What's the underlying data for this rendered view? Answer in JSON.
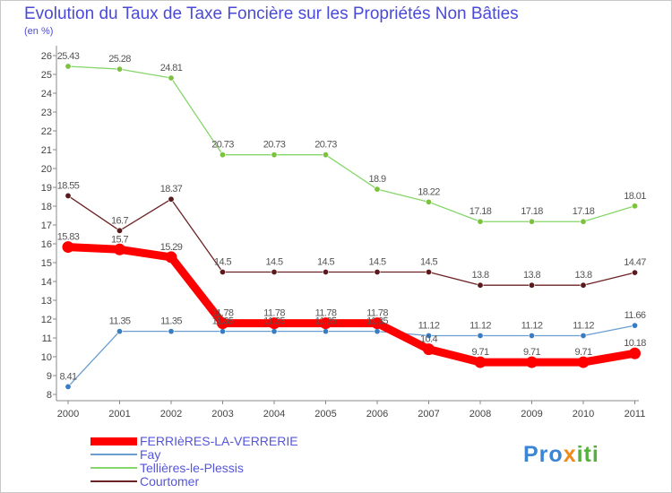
{
  "chart_data": {
    "type": "line",
    "title": "Evolution du Taux de Taxe Foncière sur les Propriétés Non Bâties",
    "unit_label": "(en %)",
    "x": [
      "2000",
      "2001",
      "2002",
      "2003",
      "2004",
      "2005",
      "2006",
      "2007",
      "2008",
      "2009",
      "2010",
      "2011"
    ],
    "ylim": [
      8,
      26
    ],
    "yticks": [
      8,
      9,
      10,
      11,
      12,
      13,
      14,
      15,
      16,
      17,
      18,
      19,
      20,
      21,
      22,
      23,
      24,
      25,
      26
    ],
    "grid": false,
    "series": [
      {
        "name": "Tellières-le-Plessis",
        "color": "#86d66a",
        "marker": "#7cc23e",
        "width": 1.3,
        "values": [
          25.43,
          25.28,
          24.81,
          20.73,
          20.73,
          20.73,
          18.9,
          18.22,
          17.18,
          17.18,
          17.18,
          18.01
        ],
        "labels": [
          "25.43",
          "25.28",
          "24.81",
          "20.73",
          "20.73",
          "20.73",
          "18.9",
          "18.22",
          "17.18",
          "17.18",
          "17.18",
          "18.01"
        ]
      },
      {
        "name": "Courtomer",
        "color": "#6b2326",
        "marker": "#5a1a1d",
        "width": 1.3,
        "values": [
          18.55,
          16.7,
          18.37,
          14.5,
          14.5,
          14.5,
          14.5,
          14.5,
          13.8,
          13.8,
          13.8,
          14.47
        ],
        "labels": [
          "18.55",
          "16.7",
          "18.37",
          "14.5",
          "14.5",
          "14.5",
          "14.5",
          "14.5",
          "13.8",
          "13.8",
          "13.8",
          "14.47"
        ]
      },
      {
        "name": "Fay",
        "color": "#6a9ed0",
        "marker": "#3a7cc2",
        "width": 1.3,
        "values": [
          8.41,
          11.35,
          11.35,
          11.35,
          11.35,
          11.35,
          11.35,
          11.12,
          11.12,
          11.12,
          11.12,
          11.66
        ],
        "labels": [
          "8.41",
          "11.35",
          "11.35",
          "11.35",
          "11.35",
          "11.35",
          "11.35",
          "11.12",
          "11.12",
          "11.12",
          "11.12",
          "11.66"
        ]
      },
      {
        "name": "FERRIèRES-LA-VERRERIE",
        "color": "#ff0000",
        "marker": "#ff0000",
        "width": 9,
        "values": [
          15.83,
          15.7,
          15.29,
          11.78,
          11.78,
          11.78,
          11.78,
          10.4,
          9.71,
          9.71,
          9.71,
          10.18
        ],
        "labels": [
          "15.83",
          "15.7",
          "15.29",
          "11.78",
          "11.78",
          "11.78",
          "11.78",
          "10.4",
          "9.71",
          "9.71",
          "9.71",
          "10.18"
        ]
      }
    ],
    "legend_order": [
      "FERRIèRES-LA-VERRERIE",
      "Fay",
      "Tellières-le-Plessis",
      "Courtomer"
    ],
    "legend_position": "bottom-left"
  },
  "logo": {
    "p1": "Pro",
    "p2": "x",
    "p3": "iti"
  }
}
